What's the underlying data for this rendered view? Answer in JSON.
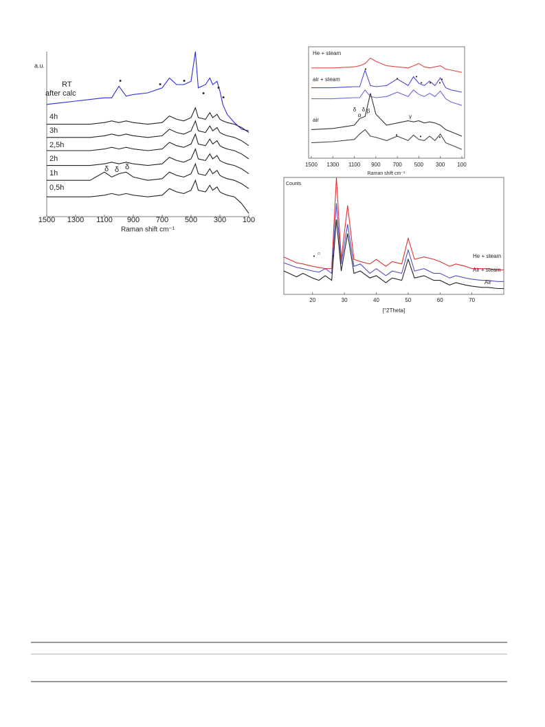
{
  "chart_data": [
    {
      "type": "line",
      "ylabel": "a.u.",
      "xlabel": "Raman shift cm⁻¹",
      "xlim": [
        1500,
        100
      ],
      "xticks": [
        1500,
        1300,
        1100,
        900,
        700,
        500,
        300,
        100
      ],
      "ylim": [
        0,
        100
      ],
      "x": [
        1500,
        1400,
        1300,
        1200,
        1100,
        1050,
        1000,
        950,
        900,
        800,
        700,
        650,
        600,
        550,
        500,
        470,
        450,
        400,
        370,
        350,
        320,
        300,
        280,
        250,
        200,
        150,
        100
      ],
      "series": [
        {
          "label_lines": [
            "RT",
            "after  calc"
          ],
          "color": "#2b2bd8",
          "values": [
            68,
            69,
            70,
            71,
            72,
            72,
            79,
            73,
            74,
            75,
            78,
            84,
            80,
            80,
            82,
            100,
            78,
            80,
            84,
            80,
            82,
            76,
            68,
            62,
            57,
            53,
            52
          ]
        },
        {
          "name": "4h",
          "color": "#222222",
          "values": [
            56,
            56,
            56,
            56,
            57,
            58,
            57,
            58,
            57,
            56,
            57,
            61,
            59,
            58,
            60,
            66,
            60,
            59,
            63,
            60,
            62,
            59,
            58,
            57,
            56,
            54,
            51
          ]
        },
        {
          "name": "3h",
          "color": "#222222",
          "values": [
            48,
            48,
            48,
            48,
            49,
            50,
            49,
            50,
            49,
            48,
            49,
            53,
            51,
            50,
            52,
            58,
            52,
            51,
            55,
            52,
            54,
            51,
            50,
            49,
            48,
            46,
            43
          ]
        },
        {
          "name": "2,5h",
          "color": "#222222",
          "values": [
            40,
            40,
            40,
            40,
            41,
            42,
            41,
            42,
            41,
            40,
            41,
            45,
            43,
            42,
            44,
            50,
            44,
            43,
            47,
            44,
            46,
            43,
            42,
            41,
            40,
            38,
            35
          ]
        },
        {
          "name": "2h",
          "color": "#222222",
          "values": [
            31,
            31,
            31,
            31,
            32,
            33,
            32,
            33,
            32,
            31,
            32,
            36,
            34,
            33,
            35,
            41,
            35,
            34,
            38,
            35,
            37,
            34,
            33,
            32,
            31,
            29,
            26
          ]
        },
        {
          "name": "1h",
          "color": "#222222",
          "values": [
            22,
            22,
            22,
            22,
            27,
            24,
            26,
            27,
            24,
            22,
            23,
            27,
            25,
            24,
            26,
            32,
            26,
            25,
            29,
            26,
            28,
            25,
            24,
            23,
            22,
            20,
            17
          ]
        },
        {
          "name": "0,5h",
          "color": "#222222",
          "values": [
            12,
            12,
            12,
            12,
            13,
            14,
            13,
            14,
            13,
            12,
            13,
            17,
            15,
            14,
            16,
            22,
            16,
            15,
            19,
            16,
            18,
            15,
            14,
            13,
            12,
            8,
            2
          ]
        }
      ],
      "annotations": [
        "•",
        "•",
        "•",
        "•",
        "•",
        "•",
        "δ",
        "δ",
        "δ"
      ]
    },
    {
      "type": "line",
      "xlabel": "Raman shift cm⁻¹",
      "xlim": [
        1500,
        100
      ],
      "xticks": [
        1500,
        1300,
        1100,
        900,
        700,
        500,
        300,
        100
      ],
      "ylim": [
        0,
        100
      ],
      "x": [
        1500,
        1300,
        1100,
        1050,
        1000,
        950,
        900,
        800,
        700,
        600,
        550,
        500,
        450,
        400,
        350,
        300,
        250,
        200,
        100
      ],
      "series": [
        {
          "name": "He + steam",
          "color": "#e04848",
          "values": [
            82,
            82,
            83,
            84,
            86,
            91,
            88,
            84,
            83,
            82,
            84,
            86,
            83,
            82,
            83,
            84,
            81,
            80,
            78
          ]
        },
        {
          "name": "air + steam",
          "color": "#4a4ad0",
          "values": [
            64,
            64,
            65,
            65,
            80,
            66,
            65,
            66,
            72,
            66,
            74,
            68,
            66,
            70,
            66,
            73,
            64,
            62,
            60
          ]
        },
        {
          "color": "#6a6ad8",
          "values": [
            54,
            54,
            55,
            55,
            62,
            56,
            55,
            56,
            60,
            56,
            62,
            58,
            56,
            59,
            56,
            61,
            54,
            51,
            48
          ]
        },
        {
          "name": "air",
          "color": "#333333",
          "values": [
            26,
            27,
            30,
            36,
            38,
            59,
            40,
            30,
            32,
            34,
            33,
            34,
            32,
            33,
            32,
            30,
            26,
            24,
            20
          ]
        },
        {
          "color": "#444444",
          "values": [
            14,
            15,
            17,
            22,
            26,
            20,
            19,
            16,
            20,
            16,
            21,
            17,
            16,
            20,
            16,
            22,
            14,
            12,
            8
          ]
        }
      ],
      "annotations": [
        "•",
        "•",
        "•",
        "•",
        "•",
        "•",
        "•",
        "•",
        "•",
        "•",
        "δ",
        "α",
        "δ",
        "β",
        "γ"
      ]
    },
    {
      "type": "line",
      "ylabel": "Counts",
      "xlabel": "[°2Theta]",
      "xlim": [
        11,
        80
      ],
      "xticks": [
        20,
        30,
        40,
        50,
        60,
        70
      ],
      "ylim": [
        0,
        100
      ],
      "x": [
        11,
        15,
        17,
        20,
        22,
        24,
        26,
        27.5,
        29,
        31,
        33,
        35,
        38,
        40,
        43,
        45,
        48,
        50,
        52,
        55,
        58,
        60,
        63,
        65,
        68,
        70,
        73,
        75,
        78,
        80
      ],
      "series": [
        {
          "name": "He + steam",
          "color": "#e03030",
          "values": [
            32,
            27,
            26,
            24,
            23,
            22,
            22,
            100,
            30,
            76,
            30,
            28,
            26,
            30,
            24,
            28,
            26,
            48,
            30,
            32,
            30,
            28,
            24,
            26,
            24,
            22,
            22,
            22,
            21,
            21
          ]
        },
        {
          "name": "Air + steam",
          "color": "#5050c0",
          "values": [
            27,
            23,
            22,
            20,
            19,
            22,
            18,
            78,
            26,
            60,
            24,
            26,
            18,
            22,
            16,
            20,
            18,
            38,
            20,
            22,
            18,
            18,
            14,
            16,
            14,
            13,
            12,
            12,
            11,
            11
          ]
        },
        {
          "name": "Air",
          "color": "#222222",
          "values": [
            20,
            15,
            18,
            14,
            12,
            16,
            12,
            64,
            20,
            52,
            18,
            20,
            14,
            16,
            10,
            14,
            12,
            30,
            14,
            16,
            12,
            12,
            8,
            10,
            8,
            7,
            6,
            6,
            5,
            5
          ]
        }
      ],
      "annotations": [
        "•",
        "○",
        "•"
      ]
    }
  ]
}
